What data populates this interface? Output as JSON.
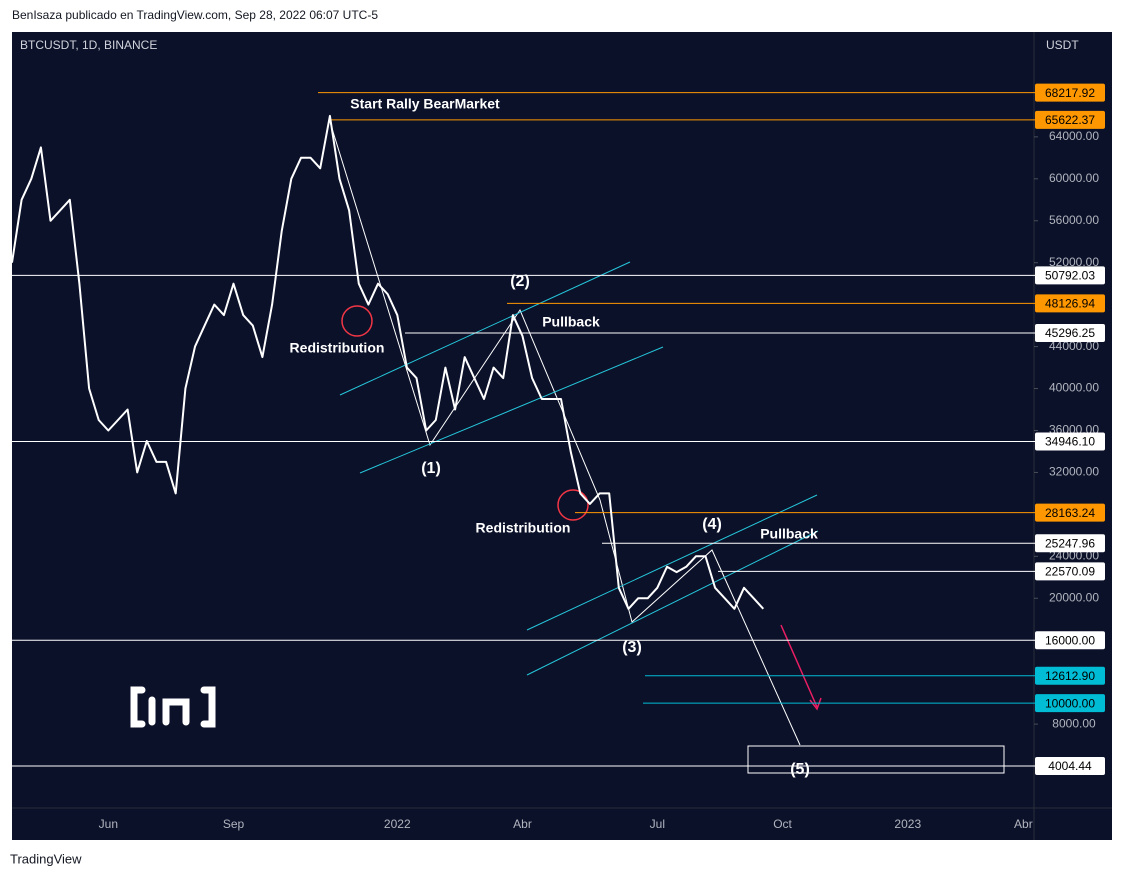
{
  "header": "BenIsaza publicado en TradingView.com, Sep 28, 2022 06:07 UTC-5",
  "footer": "TradingView",
  "chart_data": {
    "type": "line",
    "title": "BTCUSDT, 1D, BINANCE",
    "y_axis_label": "USDT",
    "color": "#ffffff",
    "categories": [
      null,
      null,
      null,
      null,
      null,
      null,
      null,
      null,
      null,
      null,
      "Jun",
      null,
      null,
      null,
      null,
      null,
      null,
      null,
      null,
      null,
      null,
      null,
      null,
      "Sep",
      null,
      null,
      null,
      null,
      null,
      null,
      null,
      null,
      null,
      null,
      null,
      null,
      null,
      null,
      null,
      null,
      "2022",
      null,
      null,
      null,
      null,
      null,
      null,
      null,
      null,
      null,
      null,
      null,
      null,
      "Abr",
      null,
      null,
      null,
      null,
      null,
      null,
      null,
      null,
      null,
      null,
      null,
      null,
      null,
      "Jul",
      null,
      null,
      null,
      null,
      null,
      null,
      null,
      null,
      null,
      null,
      null,
      null,
      "Oct",
      null,
      null,
      null,
      null,
      null,
      null,
      null,
      null,
      null,
      null,
      null,
      null,
      "2023",
      null,
      null,
      null,
      null,
      null,
      null,
      null,
      null,
      null,
      null,
      null,
      "Abr",
      null
    ],
    "values": [
      52000,
      58000,
      60000,
      63000,
      56000,
      57000,
      58000,
      50000,
      40000,
      37000,
      36000,
      37000,
      38000,
      32000,
      35000,
      33000,
      33000,
      30000,
      40000,
      44000,
      46000,
      48000,
      47000,
      50000,
      47000,
      46000,
      43000,
      48000,
      55000,
      60000,
      62000,
      62000,
      61000,
      66000,
      60000,
      57000,
      50000,
      48000,
      50000,
      49000,
      47000,
      42000,
      41000,
      36000,
      37000,
      42000,
      38000,
      43000,
      41000,
      39000,
      42000,
      41000,
      47000,
      45000,
      41000,
      39000,
      39000,
      39000,
      34000,
      30000,
      29000,
      30000,
      30000,
      21000,
      19000,
      20000,
      20000,
      21000,
      23000,
      22500,
      23000,
      24000,
      24000,
      21000,
      20000,
      19000,
      21000,
      20000,
      19000,
      null,
      null,
      null,
      null,
      null,
      null,
      null,
      null,
      null,
      null,
      null,
      null,
      null,
      null,
      null,
      null,
      null,
      null,
      null,
      null,
      null,
      null,
      null,
      null,
      null,
      null,
      null,
      null
    ],
    "ylim": [
      0,
      74000
    ],
    "yticks": [
      {
        "value": 8000,
        "label": "8000.00"
      },
      {
        "value": 20000,
        "label": "20000.00"
      },
      {
        "value": 24000,
        "label": "24000.00"
      },
      {
        "value": 32000,
        "label": "32000.00"
      },
      {
        "value": 36000,
        "label": "36000.00"
      },
      {
        "value": 40000,
        "label": "40000.00"
      },
      {
        "value": 44000,
        "label": "44000.00"
      },
      {
        "value": 52000,
        "label": "52000.00"
      },
      {
        "value": 56000,
        "label": "56000.00"
      },
      {
        "value": 60000,
        "label": "60000.00"
      },
      {
        "value": 64000,
        "label": "64000.00"
      }
    ],
    "levels": [
      {
        "value": 68217.92,
        "label": "68217.92",
        "color": "#ff9800"
      },
      {
        "value": 65622.37,
        "label": "65622.37",
        "color": "#ff9800"
      },
      {
        "value": 50792.03,
        "label": "50792.03",
        "color": "#ffffff"
      },
      {
        "value": 48126.94,
        "label": "48126.94",
        "color": "#ff9800"
      },
      {
        "value": 45296.25,
        "label": "45296.25",
        "color": "#ffffff"
      },
      {
        "value": 34946.1,
        "label": "34946.10",
        "color": "#ffffff"
      },
      {
        "value": 28163.24,
        "label": "28163.24",
        "color": "#ff9800"
      },
      {
        "value": 25247.96,
        "label": "25247.96",
        "color": "#ffffff"
      },
      {
        "value": 22570.09,
        "label": "22570.09",
        "color": "#ffffff"
      },
      {
        "value": 16000,
        "label": "16000.00",
        "color": "#ffffff"
      },
      {
        "value": 12612.9,
        "label": "12612.90",
        "color": "#00bcd4"
      },
      {
        "value": 10000,
        "label": "10000.00",
        "color": "#00bcd4"
      },
      {
        "value": 4004.44,
        "label": "4004.44",
        "color": "#ffffff"
      }
    ],
    "annotations": [
      "Start Rally BearMarket",
      "Redistribution",
      "Pullback",
      "(2)",
      "(1)",
      "Redistribution",
      "(4)",
      "Pullback",
      "(3)",
      "(5)"
    ]
  }
}
